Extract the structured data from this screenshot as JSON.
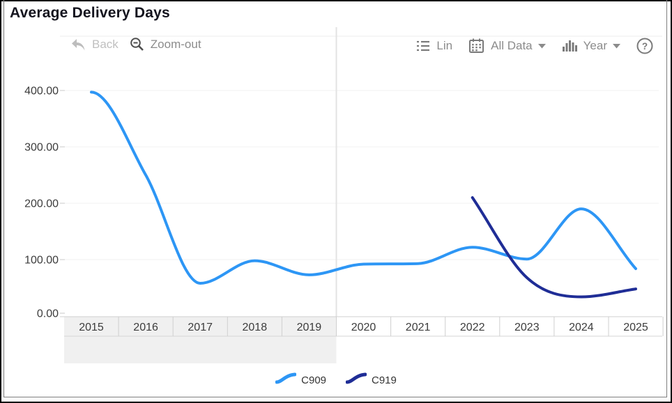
{
  "title": "Average Delivery Days",
  "toolbar": {
    "back": "Back",
    "zoom_out": "Zoom-out",
    "lin": "Lin",
    "all_data": "All Data",
    "year": "Year",
    "help": "?"
  },
  "chart_data": {
    "type": "line",
    "title": "Average Delivery Days",
    "x_labels": [
      "2015",
      "2016",
      "2017",
      "2018",
      "2019",
      "2020",
      "2021",
      "2022",
      "2023",
      "2024",
      "2025"
    ],
    "xlabel": "",
    "ylabel": "",
    "ylim": [
      0,
      400
    ],
    "y_ticks": [
      {
        "value": 0,
        "label": "0.00"
      },
      {
        "value": 100,
        "label": "100.00"
      },
      {
        "value": 200,
        "label": "200.00"
      },
      {
        "value": 300,
        "label": "300.00"
      },
      {
        "value": 400,
        "label": "400.00"
      }
    ],
    "grid": true,
    "legend_position": "bottom",
    "series": [
      {
        "name": "C909",
        "color": "#2D96F5",
        "x": [
          2015,
          2016,
          2017,
          2018,
          2019,
          2020,
          2021,
          2022,
          2023,
          2024,
          2025
        ],
        "values": [
          397,
          250,
          58,
          98,
          73,
          92,
          93,
          122,
          101,
          190,
          84
        ],
        "start_flat": true
      },
      {
        "name": "C919",
        "color": "#1F2D96",
        "x": [
          2022,
          2023,
          2024,
          2025
        ],
        "values": [
          210,
          68,
          34,
          48
        ],
        "start_flat": false
      }
    ],
    "highlight_band": {
      "from": "2015",
      "to": "2019"
    },
    "split_line_before": "2020"
  },
  "colors": {
    "band": "#f0f0f0",
    "grid": "#f0f0f0",
    "axis_line": "#cfcfcf",
    "tick": "#c9c9c9",
    "axis_text": "#3c3c3c",
    "divider": "#e3e3e3",
    "top_line": "#ededed"
  }
}
